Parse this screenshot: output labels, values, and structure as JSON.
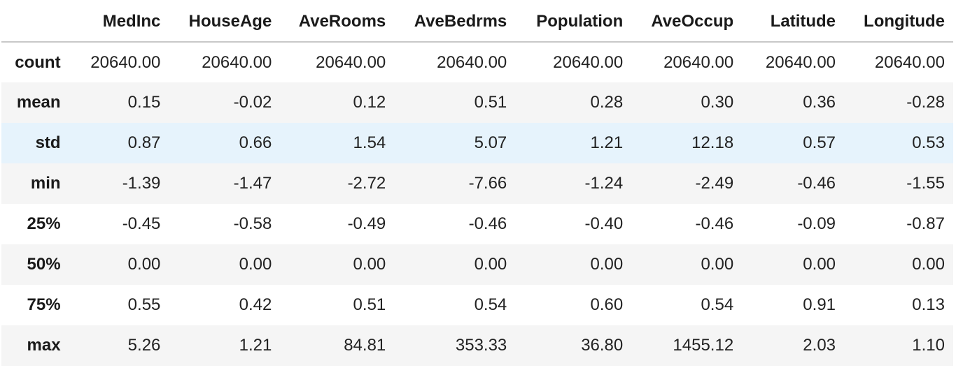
{
  "table": {
    "columns": [
      "MedInc",
      "HouseAge",
      "AveRooms",
      "AveBedrms",
      "Population",
      "AveOccup",
      "Latitude",
      "Longitude"
    ],
    "rows": [
      {
        "label": "count",
        "values": [
          "20640.00",
          "20640.00",
          "20640.00",
          "20640.00",
          "20640.00",
          "20640.00",
          "20640.00",
          "20640.00"
        ]
      },
      {
        "label": "mean",
        "values": [
          "0.15",
          "-0.02",
          "0.12",
          "0.51",
          "0.28",
          "0.30",
          "0.36",
          "-0.28"
        ]
      },
      {
        "label": "std",
        "values": [
          "0.87",
          "0.66",
          "1.54",
          "5.07",
          "1.21",
          "12.18",
          "0.57",
          "0.53"
        ]
      },
      {
        "label": "min",
        "values": [
          "-1.39",
          "-1.47",
          "-2.72",
          "-7.66",
          "-1.24",
          "-2.49",
          "-0.46",
          "-1.55"
        ]
      },
      {
        "label": "25%",
        "values": [
          "-0.45",
          "-0.58",
          "-0.49",
          "-0.46",
          "-0.40",
          "-0.46",
          "-0.09",
          "-0.87"
        ]
      },
      {
        "label": "50%",
        "values": [
          "0.00",
          "0.00",
          "0.00",
          "0.00",
          "0.00",
          "0.00",
          "0.00",
          "0.00"
        ]
      },
      {
        "label": "75%",
        "values": [
          "0.55",
          "0.42",
          "0.51",
          "0.54",
          "0.60",
          "0.54",
          "0.91",
          "0.13"
        ]
      },
      {
        "label": "max",
        "values": [
          "5.26",
          "1.21",
          "84.81",
          "353.33",
          "36.80",
          "1455.12",
          "2.03",
          "1.10"
        ]
      }
    ]
  },
  "colors": {
    "hover_row": "#e6f3fc",
    "striped_row": "#f5f5f5",
    "header_border": "#c8c8c8"
  }
}
